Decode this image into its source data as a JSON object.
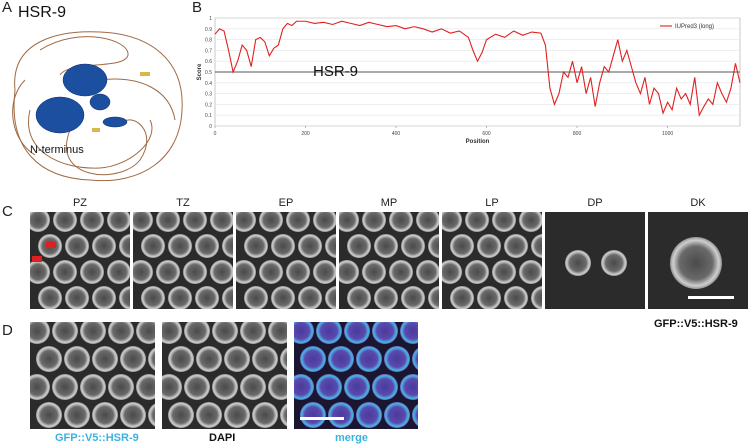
{
  "panels": {
    "A": {
      "letter": "A",
      "protein": "HSR-9",
      "terminus": "N-terminus"
    },
    "B": {
      "letter": "B",
      "overlay_label": "HSR-9"
    },
    "C": {
      "letter": "C",
      "stages": [
        "PZ",
        "TZ",
        "EP",
        "MP",
        "LP",
        "DP",
        "DK"
      ],
      "caption": "GFP::V5::HSR-9"
    },
    "D": {
      "letter": "D",
      "captions": [
        "GFP::V5::HSR-9",
        "DAPI",
        "merge"
      ]
    }
  },
  "colors": {
    "line": "#e02020",
    "structure_blue": "#1d4fa0",
    "gfp_caption": "#3bb3e0",
    "arrow": "#e02020",
    "asterisk": "#f0d020",
    "threshold": "#555555"
  },
  "chart_data": {
    "type": "line",
    "xlabel": "Position",
    "ylabel": "Score",
    "xlim": [
      0,
      1160
    ],
    "ylim": [
      0,
      1
    ],
    "xticks": [
      0,
      200,
      400,
      600,
      800,
      1000
    ],
    "yticks": [
      0,
      0.1,
      0.2,
      0.3,
      0.4,
      0.5,
      0.6,
      0.7,
      0.8,
      0.9,
      1
    ],
    "threshold": 0.5,
    "grid": true,
    "legend_position": "top-right",
    "series": [
      {
        "name": "IUPred3 (long)",
        "x": [
          0,
          10,
          20,
          30,
          40,
          50,
          60,
          70,
          80,
          90,
          100,
          110,
          120,
          130,
          140,
          150,
          160,
          170,
          180,
          200,
          220,
          240,
          260,
          280,
          300,
          320,
          340,
          360,
          380,
          400,
          420,
          440,
          460,
          480,
          500,
          520,
          540,
          560,
          570,
          580,
          590,
          600,
          620,
          640,
          660,
          680,
          700,
          720,
          730,
          740,
          750,
          760,
          770,
          780,
          790,
          800,
          810,
          820,
          830,
          840,
          850,
          860,
          870,
          880,
          890,
          900,
          910,
          920,
          930,
          940,
          950,
          960,
          970,
          980,
          990,
          1000,
          1010,
          1020,
          1030,
          1040,
          1050,
          1060,
          1070,
          1080,
          1090,
          1100,
          1110,
          1120,
          1130,
          1140,
          1150,
          1160
        ],
        "values": [
          0.85,
          0.9,
          0.88,
          0.7,
          0.5,
          0.6,
          0.75,
          0.7,
          0.55,
          0.8,
          0.82,
          0.78,
          0.65,
          0.72,
          0.75,
          0.9,
          0.95,
          0.93,
          0.97,
          0.97,
          0.95,
          0.96,
          0.94,
          0.97,
          0.95,
          0.93,
          0.96,
          0.94,
          0.92,
          0.93,
          0.9,
          0.92,
          0.9,
          0.87,
          0.9,
          0.86,
          0.88,
          0.82,
          0.7,
          0.6,
          0.68,
          0.8,
          0.85,
          0.82,
          0.88,
          0.84,
          0.87,
          0.86,
          0.75,
          0.35,
          0.2,
          0.3,
          0.5,
          0.45,
          0.6,
          0.4,
          0.55,
          0.3,
          0.45,
          0.18,
          0.4,
          0.55,
          0.5,
          0.65,
          0.8,
          0.6,
          0.7,
          0.55,
          0.4,
          0.3,
          0.45,
          0.2,
          0.35,
          0.3,
          0.12,
          0.22,
          0.15,
          0.35,
          0.25,
          0.3,
          0.2,
          0.45,
          0.1,
          0.18,
          0.25,
          0.2,
          0.4,
          0.3,
          0.22,
          0.35,
          0.58,
          0.4
        ]
      }
    ]
  }
}
